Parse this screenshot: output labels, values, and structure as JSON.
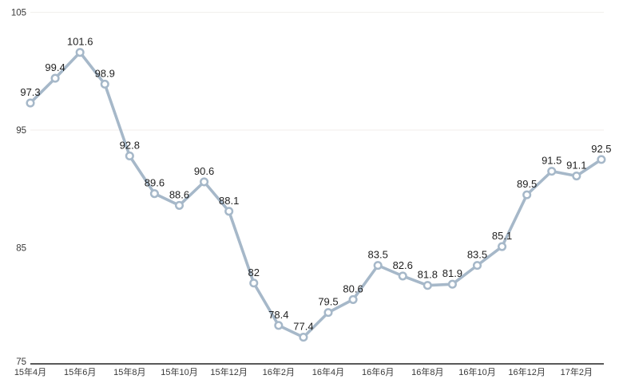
{
  "chart_data": {
    "type": "line",
    "title": "",
    "xlabel": "",
    "ylabel": "",
    "values": [
      97.3,
      99.4,
      101.6,
      98.9,
      92.8,
      89.6,
      88.6,
      90.6,
      88.1,
      82,
      78.4,
      77.4,
      79.5,
      80.6,
      83.5,
      82.6,
      81.8,
      81.9,
      83.5,
      85.1,
      89.5,
      91.5,
      91.1,
      92.5
    ],
    "data_labels": [
      "97.3",
      "99.4",
      "101.6",
      "98.9",
      "92.8",
      "89.6",
      "88.6",
      "90.6",
      "88.1",
      "82",
      "78.4",
      "77.4",
      "79.5",
      "80.6",
      "83.5",
      "82.6",
      "81.8",
      "81.9",
      "83.5",
      "85.1",
      "89.5",
      "91.5",
      "91.1",
      "92.5"
    ],
    "x_tick_labels": [
      "15年4月",
      "15年6月",
      "15年8月",
      "15年10月",
      "15年12月",
      "16年2月",
      "16年4月",
      "16年6月",
      "16年8月",
      "16年10月",
      "16年12月",
      "17年2月"
    ],
    "x_tick_step": 2,
    "y_tick_labels": [
      "105",
      "95",
      "85",
      "75"
    ],
    "y_ticks": [
      105,
      95,
      85,
      75
    ],
    "ylim": [
      75,
      105
    ],
    "grid_at": [
      105,
      95
    ],
    "legend": "none",
    "colors": {
      "line": "#a6b8c9",
      "marker_fill": "#ffffff",
      "grid": "#f3f1ef",
      "axis": "#595959",
      "data_label": "#1f1f1f",
      "tick_label": "#3a3a3a"
    }
  }
}
